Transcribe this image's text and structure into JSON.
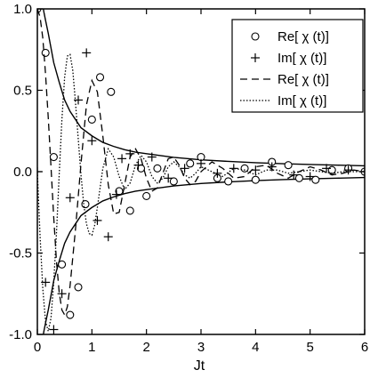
{
  "chart_data": {
    "type": "line",
    "title": "",
    "xlabel": "Jt",
    "ylabel": "",
    "xlim": [
      0,
      6
    ],
    "ylim": [
      -1.0,
      1.0
    ],
    "xticks": [
      0,
      1,
      2,
      3,
      4,
      5,
      6
    ],
    "xtick_labels": [
      "0",
      "1",
      "2",
      "3",
      "4",
      "5",
      "6"
    ],
    "yticks": [
      -1.0,
      -0.5,
      0.0,
      0.5,
      1.0
    ],
    "ytick_labels": [
      "-1.0",
      "-0.5",
      "0.0",
      "0.5",
      "1.0"
    ],
    "grid": false,
    "legend_position": "top-right",
    "envelope": {
      "x": [
        0.11,
        0.12,
        0.15,
        0.2,
        0.25,
        0.3,
        0.4,
        0.5,
        0.6,
        0.7,
        0.8,
        1.0,
        1.2,
        1.4,
        1.6,
        1.8,
        2.0,
        2.5,
        3.0,
        3.5,
        4.0,
        4.5,
        5.0,
        5.5,
        6.0
      ],
      "upper": [
        1.0,
        0.98,
        0.93,
        0.85,
        0.76,
        0.67,
        0.55,
        0.44,
        0.37,
        0.32,
        0.27,
        0.22,
        0.18,
        0.155,
        0.135,
        0.12,
        0.11,
        0.088,
        0.073,
        0.063,
        0.055,
        0.049,
        0.044,
        0.04,
        0.036
      ]
    },
    "series": [
      {
        "name": "Re[ χ (t)]",
        "marker": "circle",
        "x": [
          0.0,
          0.15,
          0.3,
          0.45,
          0.6,
          0.75,
          0.88,
          1.0,
          1.15,
          1.35,
          1.5,
          1.7,
          1.9,
          2.0,
          2.2,
          2.5,
          2.8,
          3.0,
          3.3,
          3.5,
          3.8,
          4.0,
          4.3,
          4.6,
          4.8,
          5.1,
          5.4,
          5.7,
          6.0
        ],
        "y": [
          1.0,
          0.73,
          0.09,
          -0.57,
          -0.88,
          -0.71,
          -0.2,
          0.32,
          0.58,
          0.49,
          -0.12,
          -0.24,
          0.02,
          -0.15,
          0.02,
          -0.06,
          0.05,
          0.09,
          -0.04,
          -0.06,
          0.02,
          -0.05,
          0.06,
          0.04,
          -0.04,
          -0.05,
          0.01,
          0.02,
          0.0
        ]
      },
      {
        "name": "Im[ χ (t)]",
        "marker": "plus",
        "x": [
          0.0,
          0.15,
          0.3,
          0.45,
          0.6,
          0.75,
          0.9,
          1.0,
          1.1,
          1.3,
          1.45,
          1.55,
          1.7,
          1.85,
          2.1,
          2.4,
          2.7,
          3.0,
          3.3,
          3.6,
          4.0,
          4.3,
          4.7,
          5.0,
          5.3,
          5.7,
          6.0
        ],
        "y": [
          0.0,
          -0.68,
          -0.97,
          -0.75,
          -0.16,
          0.44,
          0.73,
          0.19,
          -0.3,
          -0.4,
          -0.14,
          0.08,
          0.11,
          0.04,
          0.09,
          -0.04,
          0.02,
          0.05,
          -0.01,
          0.02,
          0.01,
          0.03,
          -0.02,
          -0.03,
          0.02,
          0.01,
          0.0
        ]
      },
      {
        "name": "Re[ χ (t)]",
        "line": "dashed",
        "x": [
          0.0,
          0.05,
          0.1,
          0.15,
          0.2,
          0.25,
          0.3,
          0.35,
          0.4,
          0.45,
          0.5,
          0.55,
          0.6,
          0.7,
          0.8,
          0.9,
          1.0,
          1.1,
          1.2,
          1.3,
          1.4,
          1.5,
          1.6,
          1.7,
          1.8,
          1.9,
          2.0,
          2.1,
          2.2,
          2.3,
          2.4,
          2.5,
          2.6,
          2.7,
          2.8,
          2.9,
          3.0,
          3.2,
          3.4,
          3.6,
          3.8,
          4.0,
          4.2,
          4.4,
          4.6,
          4.8,
          5.0,
          5.2,
          5.4,
          5.6,
          5.8,
          6.0
        ],
        "y": [
          1.0,
          0.95,
          0.82,
          0.6,
          0.33,
          0.03,
          -0.28,
          -0.55,
          -0.74,
          -0.85,
          -0.88,
          -0.83,
          -0.7,
          -0.35,
          0.05,
          0.41,
          0.56,
          0.49,
          0.22,
          -0.08,
          -0.26,
          -0.25,
          -0.08,
          0.09,
          0.14,
          0.08,
          -0.04,
          -0.12,
          -0.1,
          -0.01,
          0.08,
          0.09,
          0.04,
          -0.04,
          -0.08,
          -0.06,
          0.0,
          0.06,
          0.02,
          -0.04,
          -0.03,
          0.03,
          0.04,
          -0.01,
          -0.04,
          0.0,
          0.03,
          0.01,
          -0.02,
          -0.01,
          0.01,
          0.0
        ]
      },
      {
        "name": "Im[ χ (t)]",
        "line": "dotted",
        "x": [
          0.0,
          0.05,
          0.1,
          0.15,
          0.2,
          0.25,
          0.3,
          0.35,
          0.4,
          0.45,
          0.5,
          0.55,
          0.6,
          0.65,
          0.7,
          0.75,
          0.8,
          0.85,
          0.9,
          0.95,
          1.0,
          1.05,
          1.1,
          1.15,
          1.2,
          1.3,
          1.4,
          1.5,
          1.6,
          1.7,
          1.8,
          1.9,
          2.0,
          2.1,
          2.2,
          2.3,
          2.4,
          2.5,
          2.6,
          2.7,
          2.8,
          2.9,
          3.0,
          3.2,
          3.4,
          3.6,
          3.8,
          4.0,
          4.2,
          4.4,
          4.6,
          4.8,
          5.0,
          5.2,
          5.4,
          5.6,
          5.8,
          6.0
        ],
        "y": [
          0.0,
          -0.4,
          -0.72,
          -0.92,
          -0.98,
          -0.9,
          -0.68,
          -0.38,
          -0.02,
          0.32,
          0.58,
          0.71,
          0.72,
          0.62,
          0.42,
          0.2,
          -0.02,
          -0.2,
          -0.32,
          -0.38,
          -0.39,
          -0.33,
          -0.22,
          -0.1,
          0.02,
          0.14,
          0.09,
          -0.03,
          -0.11,
          -0.07,
          0.04,
          0.1,
          0.06,
          -0.03,
          -0.07,
          -0.04,
          0.03,
          0.06,
          0.03,
          -0.02,
          -0.04,
          -0.01,
          0.03,
          0.0,
          -0.03,
          0.02,
          0.01,
          -0.02,
          0.01,
          0.01,
          -0.01,
          0.0,
          0.01,
          0.0,
          -0.01,
          0.0,
          0.0,
          0.0
        ]
      }
    ]
  }
}
